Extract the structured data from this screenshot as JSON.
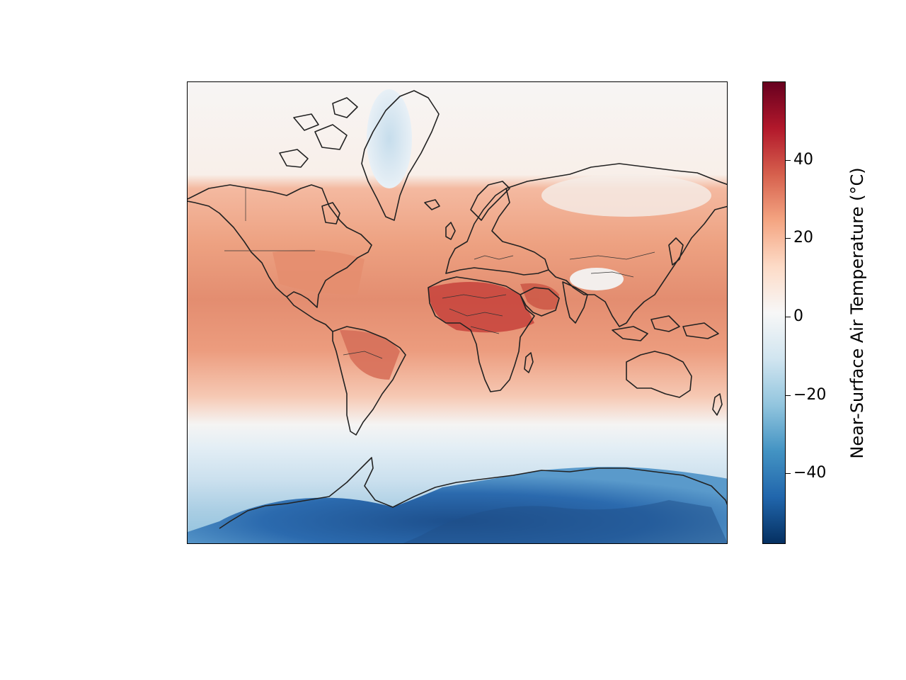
{
  "map": {
    "projection": "Mercator",
    "field": "near-surface air temperature",
    "features": [
      "coastlines",
      "country borders"
    ],
    "colormap": "RdBu_r",
    "colormap_stops": [
      "#053061",
      "#2166ac",
      "#4393c3",
      "#92c5de",
      "#d1e5f0",
      "#f7f7f7",
      "#fddbc7",
      "#f4a582",
      "#d6604d",
      "#b2182b",
      "#67001f"
    ]
  },
  "colorbar": {
    "label": "Near-Surface Air Temperature (°C)",
    "vmin": -58,
    "vmax": 60,
    "ticks": [
      {
        "value": 40,
        "label": "40"
      },
      {
        "value": 20,
        "label": "20"
      },
      {
        "value": 0,
        "label": "0"
      },
      {
        "value": -20,
        "label": "−20"
      },
      {
        "value": -40,
        "label": "−40"
      }
    ]
  }
}
